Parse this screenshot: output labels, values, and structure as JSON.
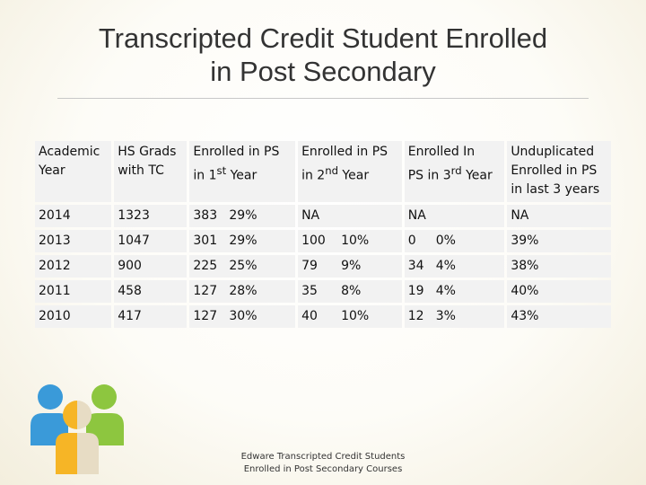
{
  "title_line1": "Transcripted Credit Student Enrolled",
  "title_line2": "in Post Secondary",
  "table": {
    "h_year_1": "Academic",
    "h_year_2": "Year",
    "h_grads_1": "HS Grads",
    "h_grads_2": "with TC",
    "h_e1_1": "Enrolled in PS",
    "h_e1_2": "in 1",
    "h_e1_sup": "st",
    "h_e1_3": " Year",
    "h_e2_1": "Enrolled in PS",
    "h_e2_2": "in 2",
    "h_e2_sup": "nd",
    "h_e2_3": " Year",
    "h_e3_1": "Enrolled In",
    "h_e3_2": "PS in 3",
    "h_e3_sup": "rd",
    "h_e3_3": " Year",
    "h_u_1": "Unduplicated",
    "h_u_2": "Enrolled in PS",
    "h_u_3": "in last 3 years",
    "rows": [
      {
        "year": "2014",
        "grads": "1323",
        "y1": "383",
        "y1p": "29%",
        "y2": "NA",
        "y2p": "",
        "y3": "NA",
        "y3p": "",
        "u": "NA"
      },
      {
        "year": "2013",
        "grads": "1047",
        "y1": "301",
        "y1p": "29%",
        "y2": "100",
        "y2p": "10%",
        "y3": "0",
        "y3p": "0%",
        "u": "39%"
      },
      {
        "year": "2012",
        "grads": "900",
        "y1": "225",
        "y1p": "25%",
        "y2": "79",
        "y2p": "9%",
        "y3": "34",
        "y3p": "4%",
        "u": "38%"
      },
      {
        "year": "2011",
        "grads": "458",
        "y1": "127",
        "y1p": "28%",
        "y2": "35",
        "y2p": "8%",
        "y3": "19",
        "y3p": "4%",
        "u": "40%"
      },
      {
        "year": "2010",
        "grads": "417",
        "y1": "127",
        "y1p": "30%",
        "y2": "40",
        "y2p": "10%",
        "y3": "12",
        "y3p": "3%",
        "u": "43%"
      }
    ]
  },
  "caption_line1": "Edware Transcripted Credit Students",
  "caption_line2": "Enrolled in Post Secondary Courses",
  "colors": {
    "blue": "#3a9ad9",
    "orange": "#f6b526",
    "green": "#8dc63f",
    "beige": "#e7dcc4"
  },
  "icon": "people-group-icon"
}
